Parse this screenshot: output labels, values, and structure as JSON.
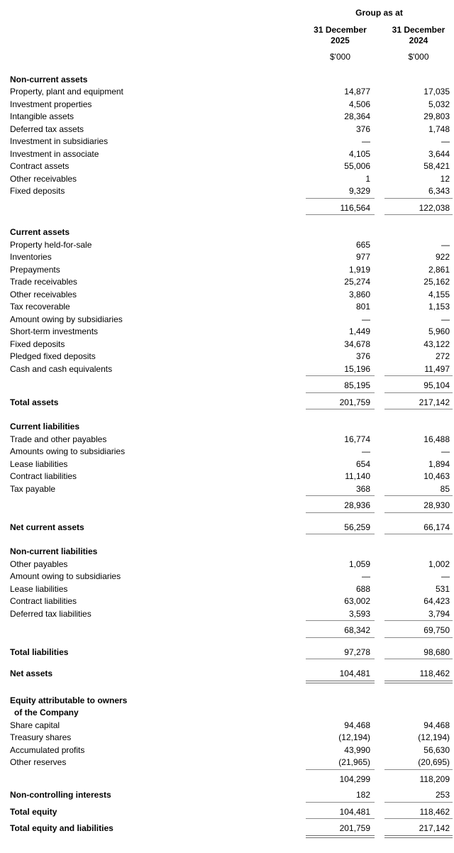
{
  "header": {
    "group_label": "Group as at",
    "columns": [
      {
        "date_line1": "31 December",
        "date_line2": "2025",
        "unit": "$'000"
      },
      {
        "date_line1": "31 December",
        "date_line2": "2024",
        "unit": "$'000"
      }
    ]
  },
  "colors": {
    "rule": "#8a8a8a",
    "text": "#000000",
    "background": "#ffffff"
  },
  "sections": [
    {
      "heading": [
        "Non-current assets"
      ],
      "rows": [
        {
          "label": "Property, plant and equipment",
          "v1": "14,877",
          "v2": "17,035"
        },
        {
          "label": "Investment properties",
          "v1": "4,506",
          "v2": "5,032"
        },
        {
          "label": "Intangible assets",
          "v1": "28,364",
          "v2": "29,803"
        },
        {
          "label": "Deferred tax assets",
          "v1": "376",
          "v2": "1,748"
        },
        {
          "label": "Investment in subsidiaries",
          "v1": "—",
          "v2": "—"
        },
        {
          "label": "Investment in associate",
          "v1": "4,105",
          "v2": "3,644"
        },
        {
          "label": "Contract assets",
          "v1": "55,006",
          "v2": "58,421"
        },
        {
          "label": "Other receivables",
          "v1": "1",
          "v2": "12"
        },
        {
          "label": "Fixed deposits",
          "v1": "9,329",
          "v2": "6,343",
          "rule": true
        },
        {
          "label": "",
          "v1": "116,564",
          "v2": "122,038",
          "type": "subtotal",
          "rule": true
        }
      ]
    },
    {
      "heading": [
        "Current assets"
      ],
      "rows": [
        {
          "label": "Property held-for-sale",
          "v1": "665",
          "v2": "—"
        },
        {
          "label": "Inventories",
          "v1": "977",
          "v2": "922"
        },
        {
          "label": "Prepayments",
          "v1": "1,919",
          "v2": "2,861"
        },
        {
          "label": "Trade receivables",
          "v1": "25,274",
          "v2": "25,162"
        },
        {
          "label": "Other receivables",
          "v1": "3,860",
          "v2": "4,155"
        },
        {
          "label": "Tax recoverable",
          "v1": "801",
          "v2": "1,153"
        },
        {
          "label": "Amount owing by subsidiaries",
          "v1": "—",
          "v2": "—"
        },
        {
          "label": "Short-term investments",
          "v1": "1,449",
          "v2": "5,960"
        },
        {
          "label": "Fixed deposits",
          "v1": "34,678",
          "v2": "43,122"
        },
        {
          "label": "Pledged fixed deposits",
          "v1": "376",
          "v2": "272"
        },
        {
          "label": "Cash and cash equivalents",
          "v1": "15,196",
          "v2": "11,497",
          "rule": true
        },
        {
          "label": "",
          "v1": "85,195",
          "v2": "95,104",
          "type": "subtotal",
          "rule": true
        },
        {
          "label": "Total assets",
          "v1": "201,759",
          "v2": "217,142",
          "type": "total",
          "rule": true
        }
      ]
    },
    {
      "heading": [
        "Current liabilities"
      ],
      "rows": [
        {
          "label": "Trade and other payables",
          "v1": "16,774",
          "v2": "16,488"
        },
        {
          "label": "Amounts owing to subsidiaries",
          "v1": "—",
          "v2": "—"
        },
        {
          "label": "Lease liabilities",
          "v1": "654",
          "v2": "1,894"
        },
        {
          "label": "Contract liabilities",
          "v1": "11,140",
          "v2": "10,463"
        },
        {
          "label": "Tax payable",
          "v1": "368",
          "v2": "85",
          "rule": true
        },
        {
          "label": "",
          "v1": "28,936",
          "v2": "28,930",
          "type": "subtotal",
          "rule": true
        }
      ]
    },
    {
      "rows": [
        {
          "label": "Net current assets",
          "v1": "56,259",
          "v2": "66,174",
          "type": "total",
          "rule": true
        }
      ]
    },
    {
      "heading": [
        "Non-current liabilities"
      ],
      "rows": [
        {
          "label": "Other payables",
          "v1": "1,059",
          "v2": "1,002"
        },
        {
          "label": "Amount owing to subsidiaries",
          "v1": "—",
          "v2": "—"
        },
        {
          "label": "Lease liabilities",
          "v1": "688",
          "v2": "531"
        },
        {
          "label": "Contract liabilities",
          "v1": "63,002",
          "v2": "64,423"
        },
        {
          "label": "Deferred tax liabilities",
          "v1": "3,593",
          "v2": "3,794",
          "rule": true
        },
        {
          "label": "",
          "v1": "68,342",
          "v2": "69,750",
          "type": "subtotal",
          "rule": true
        }
      ]
    },
    {
      "rows": [
        {
          "label": "Total liabilities",
          "v1": "97,278",
          "v2": "98,680",
          "type": "total",
          "rule": true
        }
      ]
    },
    {
      "rows": [
        {
          "label": "Net assets",
          "v1": "104,481",
          "v2": "118,462",
          "type": "grand"
        }
      ]
    },
    {
      "heading": [
        "Equity attributable to owners",
        "of the Company"
      ],
      "rows": [
        {
          "label": "Share capital",
          "v1": "94,468",
          "v2": "94,468"
        },
        {
          "label": "Treasury shares",
          "v1": "(12,194)",
          "v2": "(12,194)"
        },
        {
          "label": "Accumulated profits",
          "v1": "43,990",
          "v2": "56,630"
        },
        {
          "label": "Other reserves",
          "v1": "(21,965)",
          "v2": "(20,695)",
          "rule": true
        },
        {
          "label": "",
          "v1": "104,299",
          "v2": "118,209",
          "type": "subtotal"
        },
        {
          "label": "Non-controlling interests",
          "v1": "182",
          "v2": "253",
          "type": "total",
          "rule": true
        },
        {
          "label": "Total equity",
          "v1": "104,481",
          "v2": "118,462",
          "type": "total",
          "rule": true
        },
        {
          "label": "Total equity and liabilities",
          "v1": "201,759",
          "v2": "217,142",
          "type": "grand"
        }
      ]
    }
  ]
}
